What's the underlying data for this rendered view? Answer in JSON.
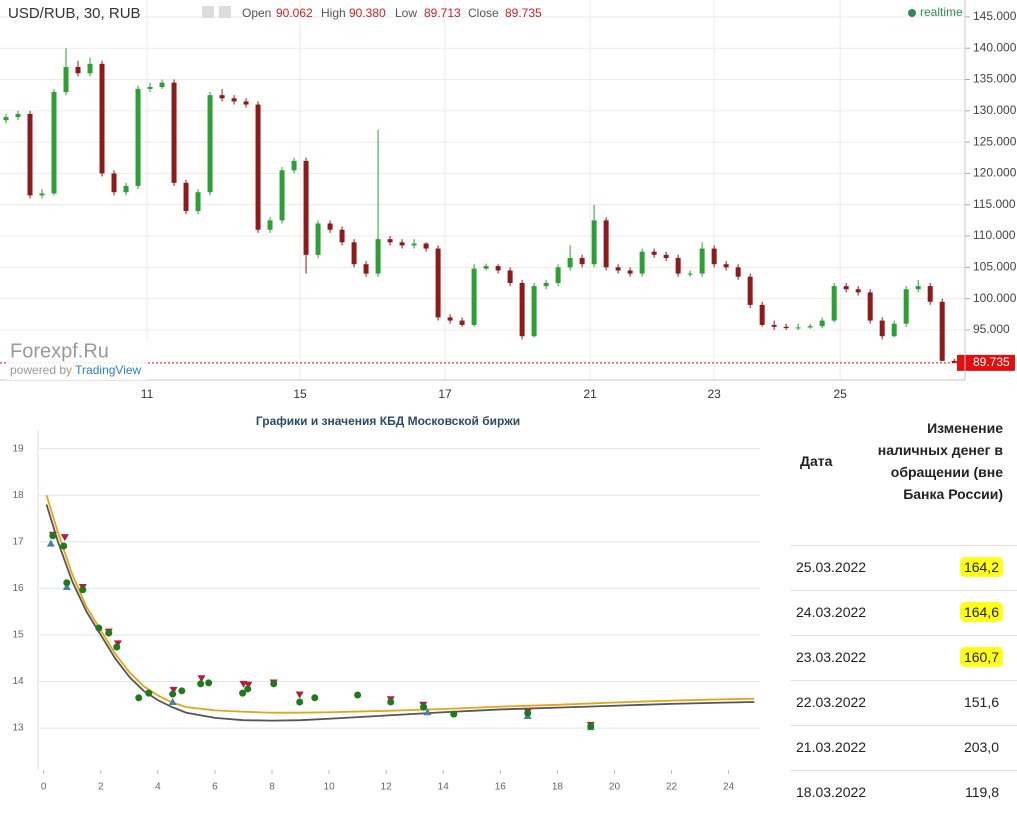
{
  "chart_data": [
    {
      "type": "candlestick",
      "title": "USD/RUB, 30, RUB",
      "header": {
        "labels": [
          "Open",
          "High",
          "Low",
          "Close"
        ],
        "values": [
          "90.062",
          "90.380",
          "89.713",
          "89.735"
        ]
      },
      "status": "realtime",
      "watermark": "Forexpf.Ru",
      "credit": "powered by",
      "credit_brand": "TradingView",
      "up_color": "#2e9e36",
      "down_color": "#8e1b1b",
      "last_price": 89.735,
      "last_price_color": "#e01010",
      "ohlc": [
        [
          128.5,
          129.5,
          128,
          129
        ],
        [
          129,
          130,
          128.5,
          129.5
        ],
        [
          129.5,
          130,
          116,
          116.5
        ],
        [
          116.5,
          117.5,
          116,
          116.8
        ],
        [
          116.8,
          133.5,
          116.5,
          133
        ],
        [
          133,
          140,
          132.5,
          137
        ],
        [
          137,
          138,
          135.5,
          136
        ],
        [
          136,
          138.5,
          135.5,
          137.5
        ],
        [
          137.5,
          138,
          119.5,
          120
        ],
        [
          120,
          120.5,
          116.5,
          117
        ],
        [
          117,
          118.5,
          116.5,
          118
        ],
        [
          118,
          134,
          117.5,
          133.5
        ],
        [
          133.5,
          134.5,
          133,
          133.8
        ],
        [
          133.8,
          135,
          133.5,
          134.5
        ],
        [
          134.5,
          135,
          118,
          118.5
        ],
        [
          118.5,
          119,
          113.5,
          114
        ],
        [
          114,
          117.5,
          113.5,
          117
        ],
        [
          117,
          133,
          116.5,
          132.5
        ],
        [
          132.5,
          133.5,
          131.5,
          132
        ],
        [
          132,
          132.5,
          131,
          131.5
        ],
        [
          131.5,
          132,
          130.5,
          131
        ],
        [
          131,
          131.5,
          110.5,
          111
        ],
        [
          111,
          113,
          110.5,
          112.5
        ],
        [
          112.5,
          121,
          112,
          120.5
        ],
        [
          120.5,
          122.5,
          120,
          122
        ],
        [
          122,
          122.5,
          104,
          107
        ],
        [
          107,
          112.5,
          106.5,
          112
        ],
        [
          112,
          112.5,
          110.5,
          111
        ],
        [
          111,
          111.5,
          108.5,
          109
        ],
        [
          109,
          109.5,
          105,
          105.5
        ],
        [
          105.5,
          106,
          103.5,
          104
        ],
        [
          104,
          127,
          103.5,
          109.5
        ],
        [
          109.5,
          110,
          108.5,
          109
        ],
        [
          109,
          109.5,
          108,
          108.5
        ],
        [
          108.5,
          109.5,
          108,
          108.8
        ],
        [
          108.8,
          109,
          107.5,
          108
        ],
        [
          108,
          108.5,
          96.5,
          97
        ],
        [
          97,
          97.5,
          96,
          96.5
        ],
        [
          96.5,
          97,
          95.5,
          95.8
        ],
        [
          95.8,
          105.5,
          95.5,
          104.8
        ],
        [
          104.8,
          105.6,
          104.5,
          105.2
        ],
        [
          105.2,
          105.5,
          104,
          104.5
        ],
        [
          104.5,
          105,
          102,
          102.5
        ],
        [
          102.5,
          103,
          93.5,
          94
        ],
        [
          94,
          102.5,
          93.8,
          102
        ],
        [
          102,
          103,
          101.5,
          102.5
        ],
        [
          102.5,
          105.5,
          102,
          105
        ],
        [
          105,
          108.5,
          104.5,
          106.5
        ],
        [
          106.5,
          107,
          105,
          105.5
        ],
        [
          105.5,
          115,
          105,
          112.5
        ],
        [
          112.5,
          113,
          104.5,
          105
        ],
        [
          105,
          105.5,
          104,
          104.5
        ],
        [
          104.5,
          105,
          103.5,
          104
        ],
        [
          104,
          108,
          103.5,
          107.5
        ],
        [
          107.5,
          108,
          106.5,
          107
        ],
        [
          107,
          107.5,
          106,
          106.5
        ],
        [
          106.5,
          107,
          103.5,
          104
        ],
        [
          104,
          104.5,
          103.5,
          104
        ],
        [
          104,
          109,
          103.5,
          108
        ],
        [
          108,
          108.5,
          105,
          105.5
        ],
        [
          105.5,
          106,
          104.5,
          105
        ],
        [
          105,
          105.5,
          103,
          103.5
        ],
        [
          103.5,
          104,
          98.5,
          99
        ],
        [
          99,
          99.5,
          95.5,
          95.8
        ],
        [
          95.8,
          96.5,
          95,
          95.5
        ],
        [
          95.5,
          96,
          95,
          95.3
        ],
        [
          95.3,
          96,
          95,
          95.4
        ],
        [
          95.4,
          96,
          95.2,
          95.6
        ],
        [
          95.6,
          97,
          95.3,
          96.5
        ],
        [
          96.5,
          102.5,
          96.2,
          102
        ],
        [
          102,
          102.5,
          101,
          101.5
        ],
        [
          101.5,
          102,
          100.5,
          101
        ],
        [
          101,
          101.5,
          96,
          96.5
        ],
        [
          96.5,
          97,
          93.5,
          94
        ],
        [
          94,
          96.5,
          93.8,
          96
        ],
        [
          96,
          102,
          95.5,
          101.5
        ],
        [
          101.5,
          103,
          101,
          102
        ],
        [
          102,
          102.5,
          99,
          99.5
        ],
        [
          99.5,
          100,
          90,
          90.062
        ],
        [
          90.062,
          90.38,
          89.713,
          89.735
        ]
      ],
      "xlim": [
        -0.5,
        79.9
      ],
      "xticks": [
        {
          "value": 11.75,
          "label": "11"
        },
        {
          "value": 24.5,
          "label": "15"
        },
        {
          "value": 36.58,
          "label": "17"
        },
        {
          "value": 48.67,
          "label": "21"
        },
        {
          "value": 59,
          "label": "23"
        },
        {
          "value": 69.5,
          "label": "25"
        }
      ],
      "ylim": [
        89.4,
        147.7
      ],
      "yticks": [
        {
          "value": 95,
          "label": "95.000"
        },
        {
          "value": 100,
          "label": "100.000"
        },
        {
          "value": 105,
          "label": "105.000"
        },
        {
          "value": 110,
          "label": "110.000"
        },
        {
          "value": 115,
          "label": "115.000"
        },
        {
          "value": 120,
          "label": "120.000"
        },
        {
          "value": 125,
          "label": "125.000"
        },
        {
          "value": 130,
          "label": "130.000"
        },
        {
          "value": 135,
          "label": "135.000"
        },
        {
          "value": 140,
          "label": "140.000"
        },
        {
          "value": 145,
          "label": "145.000"
        }
      ],
      "grid": true
    },
    {
      "type": "scatter",
      "title": "Графики и значения КБД Московской биржи",
      "xlim": [
        -0.2,
        25.1
      ],
      "xticks": [
        0,
        2,
        4,
        6,
        8,
        10,
        12,
        14,
        16,
        18,
        20,
        22,
        24
      ],
      "ylim": [
        12.1,
        19.4
      ],
      "yticks": [
        13,
        14,
        15,
        16,
        17,
        18,
        19
      ],
      "grid": true,
      "series": [
        {
          "marker": "line",
          "color": "#e8a317",
          "x": [
            0.1,
            0.5,
            1,
            1.5,
            2,
            2.5,
            3,
            3.5,
            4,
            4.5,
            5,
            6,
            7,
            8,
            9,
            10,
            12,
            14,
            16,
            18,
            20,
            22,
            24,
            24.9
          ],
          "values": [
            18.0,
            17.2,
            16.3,
            15.6,
            15.1,
            14.6,
            14.2,
            13.9,
            13.7,
            13.55,
            13.45,
            13.38,
            13.35,
            13.33,
            13.33,
            13.34,
            13.37,
            13.41,
            13.46,
            13.5,
            13.55,
            13.59,
            13.62,
            13.63
          ]
        },
        {
          "marker": "line",
          "color": "#555555",
          "x": [
            0.1,
            0.5,
            1,
            1.5,
            2,
            2.5,
            3,
            3.5,
            4,
            4.5,
            5,
            6,
            7,
            8,
            9,
            10,
            12,
            14,
            16,
            18,
            20,
            22,
            24,
            24.9
          ],
          "values": [
            17.8,
            17.0,
            16.15,
            15.5,
            15.0,
            14.5,
            14.1,
            13.8,
            13.6,
            13.45,
            13.33,
            13.22,
            13.17,
            13.16,
            13.17,
            13.2,
            13.27,
            13.34,
            13.4,
            13.44,
            13.48,
            13.52,
            13.55,
            13.56
          ]
        },
        {
          "marker": "triangle-up",
          "color": "#4a7fa8",
          "x": [
            0.25,
            0.81,
            4.52,
            13.45,
            16.96,
            19.17
          ],
          "values": [
            16.96,
            16.03,
            13.56,
            13.34,
            13.26,
            13.02
          ]
        },
        {
          "marker": "triangle-down",
          "color": "#b0203a",
          "x": [
            0.32,
            0.74,
            1.37,
            2.28,
            2.6,
            4.55,
            5.53,
            7.0,
            7.17,
            8.06,
            8.97,
            12.16,
            13.3,
            16.96,
            19.17
          ],
          "values": [
            17.15,
            17.1,
            16.03,
            15.07,
            14.82,
            13.82,
            14.07,
            13.95,
            13.93,
            13.98,
            13.72,
            13.62,
            13.5,
            13.35,
            13.07
          ]
        },
        {
          "marker": "circle",
          "color": "#1f7a1f",
          "x": [
            0.32,
            0.7,
            0.81,
            1.37,
            1.93,
            2.28,
            2.56,
            3.33,
            3.68,
            4.52,
            4.84,
            5.5,
            5.78,
            6.97,
            7.15,
            8.06,
            8.97,
            9.5,
            11.0,
            12.16,
            13.31,
            14.37,
            16.96,
            19.17
          ],
          "values": [
            17.13,
            16.91,
            16.12,
            15.97,
            15.15,
            15.04,
            14.74,
            13.65,
            13.75,
            13.73,
            13.8,
            13.95,
            13.97,
            13.75,
            13.84,
            13.95,
            13.56,
            13.65,
            13.71,
            13.56,
            13.45,
            13.3,
            13.32,
            13.04
          ]
        }
      ]
    }
  ],
  "table": {
    "header": [
      "Дата",
      "Изменение наличных денег в обращении (вне Банка России)"
    ],
    "rows": [
      [
        "25.03.2022",
        "164,2"
      ],
      [
        "24.03.2022",
        "164,6"
      ],
      [
        "23.03.2022",
        "160,7"
      ],
      [
        "22.03.2022",
        "151,6"
      ],
      [
        "21.03.2022",
        "203,0"
      ],
      [
        "18.03.2022",
        "119,8"
      ]
    ],
    "highlight": [
      true,
      true,
      true,
      false,
      false,
      false
    ],
    "highlight_color": "#ffff1a"
  }
}
